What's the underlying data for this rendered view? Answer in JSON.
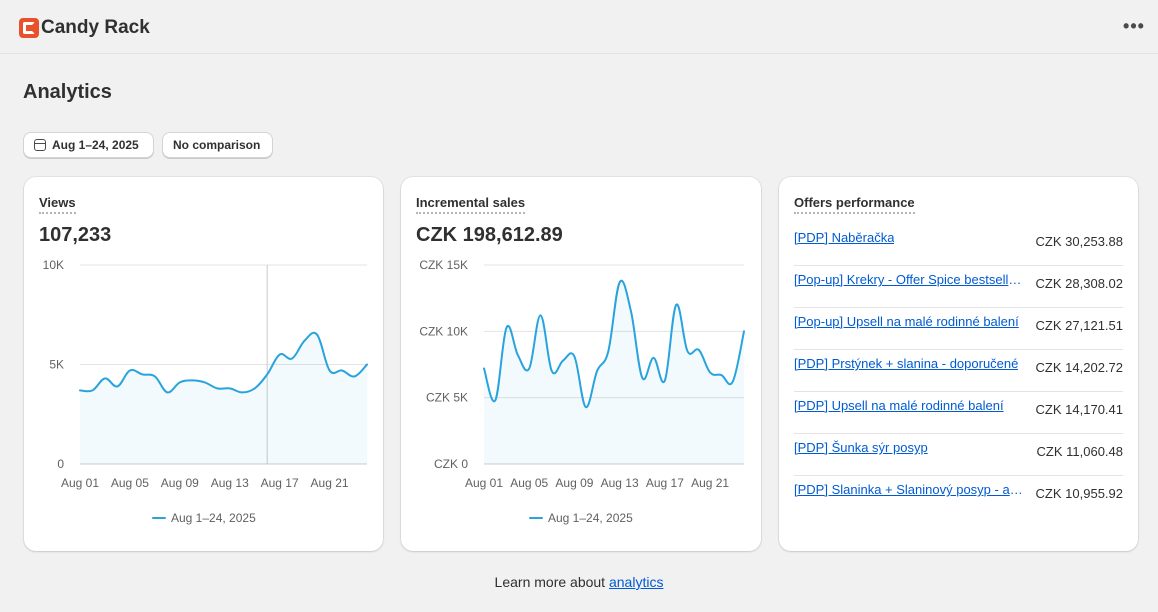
{
  "app": {
    "title": "Candy Rack",
    "logo_icon": "candy-rack-logo-icon",
    "more_icon": "more-horizontal-icon",
    "more_label": "•••"
  },
  "page": {
    "title": "Analytics"
  },
  "filters": {
    "date_range": "Aug 1–24, 2025",
    "comparison": "No comparison",
    "date_icon": "calendar-icon"
  },
  "views": {
    "heading": "Views",
    "value": "107,233",
    "legend": "Aug 1–24, 2025",
    "y_ticks": [
      "10K",
      "5K",
      "0"
    ],
    "x_ticks": [
      "Aug 01",
      "Aug 05",
      "Aug 09",
      "Aug 13",
      "Aug 17",
      "Aug 21"
    ]
  },
  "sales": {
    "heading": "Incremental sales",
    "value": "CZK 198,612.89",
    "legend": "Aug 1–24, 2025",
    "y_ticks": [
      "CZK 15K",
      "CZK 10K",
      "CZK 5K",
      "CZK 0"
    ],
    "x_ticks": [
      "Aug 01",
      "Aug 05",
      "Aug 09",
      "Aug 13",
      "Aug 17",
      "Aug 21"
    ]
  },
  "offers": {
    "heading": "Offers performance",
    "rows": [
      {
        "name": "[PDP] Naběračka",
        "value": "CZK 30,253.88"
      },
      {
        "name": "[Pop-up] Krekry - Offer Spice bestsellers",
        "value": "CZK 28,308.02"
      },
      {
        "name": "[Pop-up] Upsell na malé rodinné balení",
        "value": "CZK 27,121.51"
      },
      {
        "name": "[PDP] Prstýnek + slanina - doporučené",
        "value": "CZK 14,202.72"
      },
      {
        "name": "[PDP] Upsell na malé rodinné balení",
        "value": "CZK 14,170.41"
      },
      {
        "name": "[PDP] Šunka sýr posyp",
        "value": "CZK 11,060.48"
      },
      {
        "name": "[PDP] Slaninka + Slaninový posyp - akce",
        "value": "CZK 10,955.92"
      }
    ]
  },
  "footer": {
    "text": "Learn more about",
    "link": "analytics"
  },
  "colors": {
    "line": "#29a3dd",
    "link": "#005bd3",
    "accent": "#e8512b"
  },
  "chart_data": [
    {
      "type": "line",
      "title": "Views",
      "x": [
        "Aug 01",
        "Aug 02",
        "Aug 03",
        "Aug 04",
        "Aug 05",
        "Aug 06",
        "Aug 07",
        "Aug 08",
        "Aug 09",
        "Aug 10",
        "Aug 11",
        "Aug 12",
        "Aug 13",
        "Aug 14",
        "Aug 15",
        "Aug 16",
        "Aug 17",
        "Aug 18",
        "Aug 19",
        "Aug 20",
        "Aug 21",
        "Aug 22",
        "Aug 23",
        "Aug 24"
      ],
      "series": [
        {
          "name": "Aug 1–24, 2025",
          "values": [
            3700,
            3700,
            4300,
            3900,
            4700,
            4500,
            4400,
            3600,
            4100,
            4200,
            4100,
            3800,
            3800,
            3600,
            3800,
            4500,
            5500,
            5300,
            6200,
            6500,
            4700,
            4700,
            4400,
            5000
          ]
        }
      ],
      "ylim": [
        0,
        10000
      ],
      "grid": true
    },
    {
      "type": "line",
      "title": "Incremental sales",
      "x": [
        "Aug 01",
        "Aug 02",
        "Aug 03",
        "Aug 04",
        "Aug 05",
        "Aug 06",
        "Aug 07",
        "Aug 08",
        "Aug 09",
        "Aug 10",
        "Aug 11",
        "Aug 12",
        "Aug 13",
        "Aug 14",
        "Aug 15",
        "Aug 16",
        "Aug 17",
        "Aug 18",
        "Aug 19",
        "Aug 20",
        "Aug 21",
        "Aug 22",
        "Aug 23",
        "Aug 24"
      ],
      "series": [
        {
          "name": "Aug 1–24, 2025",
          "values": [
            7200,
            4800,
            10300,
            8200,
            7200,
            11200,
            7000,
            7800,
            8100,
            4300,
            7000,
            8500,
            13700,
            11500,
            6500,
            8000,
            6300,
            12000,
            8500,
            8600,
            6900,
            6700,
            6200,
            10000
          ]
        }
      ],
      "ylim": [
        0,
        15000
      ],
      "grid": true
    }
  ]
}
